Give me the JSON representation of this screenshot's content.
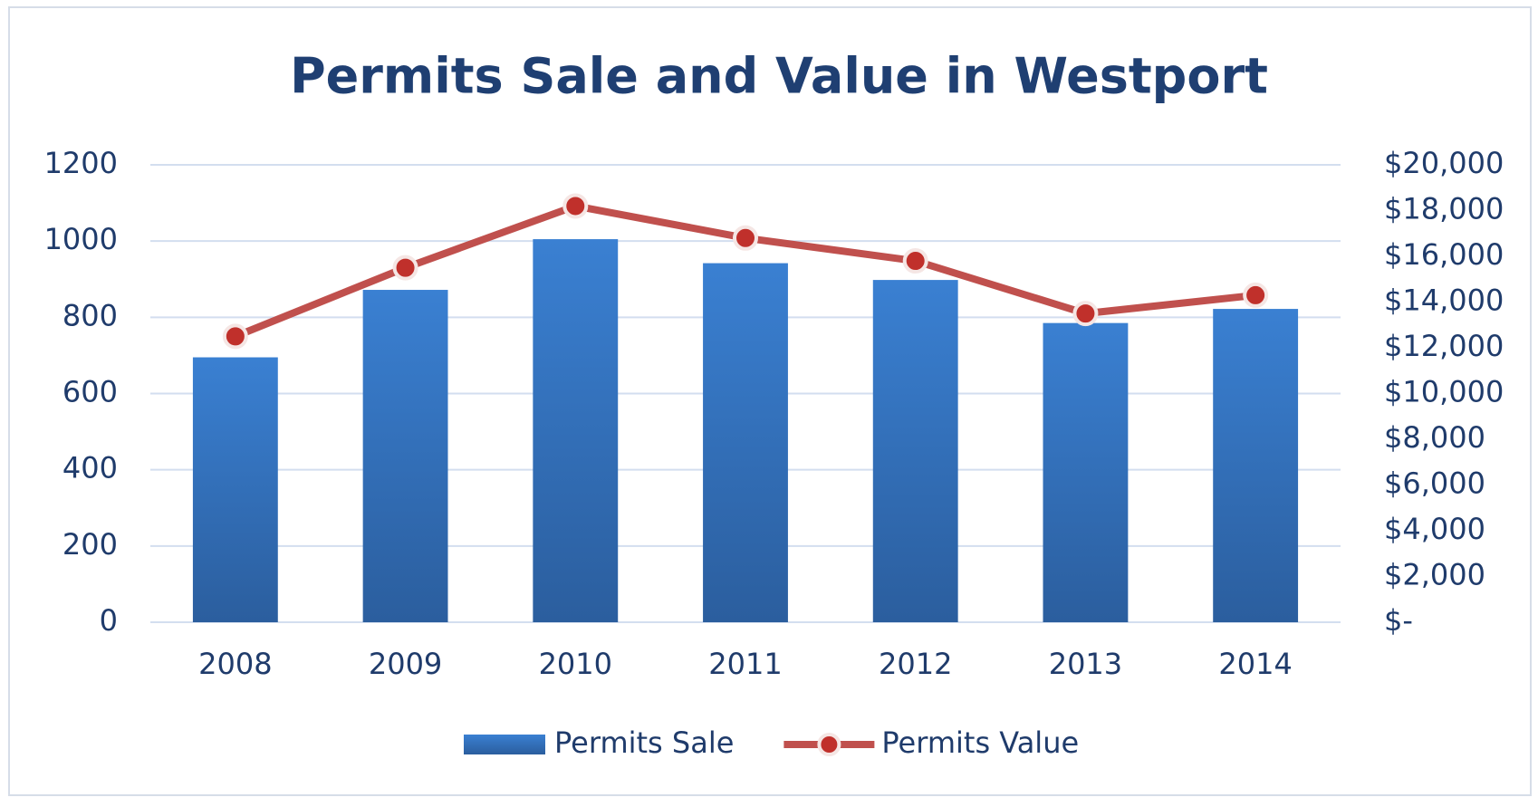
{
  "chart_data": {
    "type": "bar-line",
    "title": "Permits Sale and Value in Westport",
    "categories": [
      "2008",
      "2009",
      "2010",
      "2011",
      "2012",
      "2013",
      "2014"
    ],
    "series": [
      {
        "name": "Permits Sale",
        "type": "bar",
        "color": "#3479cc",
        "values": [
          695,
          872,
          1005,
          942,
          898,
          785,
          822
        ]
      },
      {
        "name": "Permits Value",
        "type": "line",
        "axis": "y2",
        "color": "#c0504d",
        "values": [
          12500,
          15500,
          18200,
          16800,
          15800,
          13500,
          14300
        ]
      }
    ],
    "ylim": [
      0,
      1200
    ],
    "yticks": [
      0,
      200,
      400,
      600,
      800,
      1000,
      1200
    ],
    "y2lim": [
      0,
      20000
    ],
    "y2ticks": [
      {
        "value": 0,
        "label": "$-"
      },
      {
        "value": 2000,
        "label": "$2,000"
      },
      {
        "value": 4000,
        "label": "$4,000"
      },
      {
        "value": 6000,
        "label": "$6,000"
      },
      {
        "value": 8000,
        "label": "$8,000"
      },
      {
        "value": 10000,
        "label": "$10,000"
      },
      {
        "value": 12000,
        "label": "$12,000"
      },
      {
        "value": 14000,
        "label": "$14,000"
      },
      {
        "value": 16000,
        "label": "$16,000"
      },
      {
        "value": 18000,
        "label": "$18,000"
      },
      {
        "value": 20000,
        "label": "$20,000"
      }
    ],
    "grid": true,
    "legend": "bottom"
  }
}
